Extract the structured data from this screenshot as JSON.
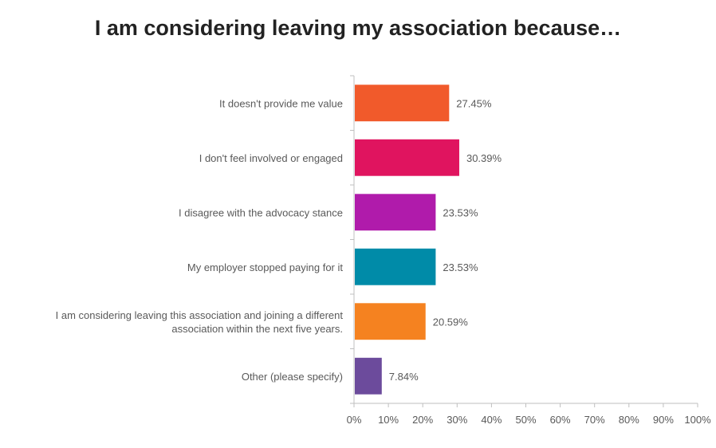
{
  "chart_data": {
    "type": "bar",
    "orientation": "horizontal",
    "title": "I am considering leaving my association because…",
    "categories": [
      "It doesn't provide me value",
      "I don't feel involved or engaged",
      "I disagree with the advocacy stance",
      "My employer stopped paying for it",
      "I am considering leaving this association and joining a different association within the next five years.",
      "Other (please specify)"
    ],
    "category_lines": [
      [
        "It doesn't provide me value"
      ],
      [
        "I don't feel involved or engaged"
      ],
      [
        "I disagree with the advocacy stance"
      ],
      [
        "My employer stopped paying for it"
      ],
      [
        "I am considering leaving this association and joining a different",
        "association within the next five years."
      ],
      [
        "Other (please specify)"
      ]
    ],
    "values": [
      27.45,
      30.39,
      23.53,
      23.53,
      20.59,
      7.84
    ],
    "data_labels": [
      "27.45%",
      "30.39%",
      "23.53%",
      "23.53%",
      "20.59%",
      "7.84%"
    ],
    "colors": [
      "#F15A2B",
      "#E0145F",
      "#B01BAB",
      "#008BA8",
      "#F58220",
      "#6C4B9C"
    ],
    "xlim": [
      0,
      100
    ],
    "xticks": [
      "0%",
      "10%",
      "20%",
      "30%",
      "40%",
      "50%",
      "60%",
      "70%",
      "80%",
      "90%",
      "100%"
    ],
    "xlabel": "",
    "ylabel": "",
    "grid": false,
    "legend": "none"
  }
}
